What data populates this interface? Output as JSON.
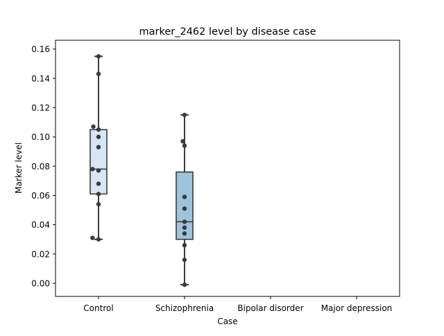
{
  "chart_data": {
    "type": "box",
    "title": "marker_2462 level by disease case",
    "xlabel": "Case",
    "ylabel": "Marker level",
    "categories": [
      "Control",
      "Schizophrenia",
      "Bipolar disorder",
      "Major depression"
    ],
    "ylim": [
      -0.009,
      0.166
    ],
    "yticks": [
      0.0,
      0.02,
      0.04,
      0.06,
      0.08,
      0.1,
      0.12,
      0.14,
      0.16
    ],
    "ytick_labels": [
      "0.00",
      "0.02",
      "0.04",
      "0.06",
      "0.08",
      "0.10",
      "0.12",
      "0.14",
      "0.16"
    ],
    "grid": false,
    "boxes": [
      {
        "category": "Control",
        "min": 0.03,
        "q1": 0.061,
        "median": 0.078,
        "q3": 0.105,
        "max": 0.155,
        "color": "#d6e6f4"
      },
      {
        "category": "Schizophrenia",
        "min": -0.001,
        "q1": 0.03,
        "median": 0.042,
        "q3": 0.076,
        "max": 0.115,
        "color": "#9ec4dc"
      },
      {
        "category": "Bipolar disorder",
        "min": null,
        "q1": null,
        "median": null,
        "q3": null,
        "max": null,
        "color": null
      },
      {
        "category": "Major depression",
        "min": null,
        "q1": null,
        "median": null,
        "q3": null,
        "max": null,
        "color": null
      }
    ],
    "points": [
      {
        "category": "Control",
        "values": [
          0.155,
          0.143,
          0.107,
          0.105,
          0.1,
          0.093,
          0.078,
          0.077,
          0.068,
          0.061,
          0.054,
          0.031,
          0.03
        ],
        "jitter": [
          0.0,
          0.0,
          -0.06,
          0.0,
          0.0,
          0.0,
          -0.07,
          0.0,
          0.0,
          0.0,
          0.0,
          -0.07,
          0.0
        ]
      },
      {
        "category": "Schizophrenia",
        "values": [
          0.115,
          0.097,
          0.094,
          0.059,
          0.051,
          0.042,
          0.038,
          0.034,
          0.026,
          0.016,
          -0.001
        ],
        "jitter": [
          0.0,
          -0.02,
          0.0,
          0.0,
          0.0,
          0.0,
          0.0,
          0.0,
          0.0,
          0.0,
          0.0
        ]
      }
    ],
    "colors": {
      "box_edge": "#3b3b3b",
      "point": "#3b3b3b",
      "axis": "#000000"
    }
  }
}
